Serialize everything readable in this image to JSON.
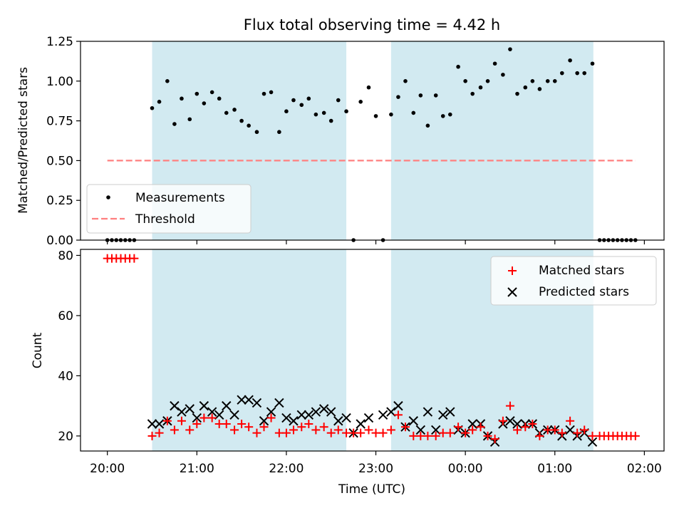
{
  "chart_data": [
    {
      "type": "scatter",
      "title": "Flux total observing time = 4.42 h",
      "xlabel": "",
      "ylabel": "Matched/Predicted stars",
      "ylim": [
        0,
        1.25
      ],
      "yticks": [
        0.0,
        0.25,
        0.5,
        0.75,
        1.0,
        1.25
      ],
      "ytick_labels": [
        "0.00",
        "0.25",
        "0.50",
        "0.75",
        "1.00",
        "1.25"
      ],
      "xlim": [
        -0.3,
        6.22
      ],
      "grid": false,
      "legend_placement": "lower-left",
      "shaded_intervals": [
        [
          0.5,
          2.67
        ],
        [
          3.17,
          5.43
        ]
      ],
      "shade_color": "#add8e6",
      "series": [
        {
          "name": "Measurements",
          "marker": "dot",
          "color": "#000000",
          "x": [
            0.0,
            0.05,
            0.1,
            0.15,
            0.2,
            0.25,
            0.3,
            0.5,
            0.58,
            0.67,
            0.75,
            0.83,
            0.92,
            1.0,
            1.08,
            1.17,
            1.25,
            1.33,
            1.42,
            1.5,
            1.58,
            1.67,
            1.75,
            1.83,
            1.92,
            2.0,
            2.08,
            2.17,
            2.25,
            2.33,
            2.42,
            2.5,
            2.58,
            2.67,
            2.75,
            2.83,
            2.92,
            3.0,
            3.08,
            3.17,
            3.25,
            3.33,
            3.42,
            3.5,
            3.58,
            3.67,
            3.75,
            3.83,
            3.92,
            4.0,
            4.08,
            4.17,
            4.25,
            4.33,
            4.42,
            4.5,
            4.58,
            4.67,
            4.75,
            4.83,
            4.92,
            5.0,
            5.08,
            5.17,
            5.25,
            5.33,
            5.42,
            5.5,
            5.55,
            5.6,
            5.65,
            5.7,
            5.75,
            5.8,
            5.85,
            5.9
          ],
          "y": [
            0,
            0,
            0,
            0,
            0,
            0,
            0,
            0.83,
            0.87,
            1.0,
            0.73,
            0.89,
            0.76,
            0.92,
            0.86,
            0.93,
            0.89,
            0.8,
            0.82,
            0.75,
            0.72,
            0.68,
            0.92,
            0.93,
            0.68,
            0.81,
            0.88,
            0.85,
            0.89,
            0.79,
            0.8,
            0.75,
            0.88,
            0.81,
            0.0,
            0.87,
            0.96,
            0.78,
            0.0,
            0.79,
            0.9,
            1.0,
            0.8,
            0.91,
            0.72,
            0.91,
            0.78,
            0.79,
            1.09,
            1.0,
            0.92,
            0.96,
            1.0,
            1.11,
            1.04,
            1.2,
            0.92,
            0.96,
            1.0,
            0.95,
            1.0,
            1.0,
            1.05,
            1.13,
            1.05,
            1.05,
            1.11,
            0,
            0,
            0,
            0,
            0,
            0,
            0,
            0,
            0
          ]
        },
        {
          "name": "Threshold",
          "marker": "dashed-line",
          "color": "#ff7f7f",
          "x": [
            0.0,
            5.9
          ],
          "y": [
            0.5,
            0.5
          ]
        }
      ]
    },
    {
      "type": "scatter",
      "title": "",
      "xlabel": "Time (UTC)",
      "ylabel": "Count",
      "ylim": [
        15,
        82
      ],
      "yticks": [
        20,
        40,
        60,
        80
      ],
      "ytick_labels": [
        "20",
        "40",
        "60",
        "80"
      ],
      "xlim": [
        -0.3,
        6.22
      ],
      "xticks": [
        0,
        1,
        2,
        3,
        4,
        5,
        6
      ],
      "xtick_labels": [
        "20:00",
        "21:00",
        "22:00",
        "23:00",
        "00:00",
        "01:00",
        "02:00"
      ],
      "grid": false,
      "legend_placement": "upper-right",
      "shaded_intervals": [
        [
          0.5,
          2.67
        ],
        [
          3.17,
          5.43
        ]
      ],
      "shade_color": "#add8e6",
      "series": [
        {
          "name": "Matched stars",
          "marker": "plus",
          "color": "#ff0000",
          "x": [
            0.0,
            0.05,
            0.1,
            0.15,
            0.2,
            0.25,
            0.3,
            0.5,
            0.58,
            0.67,
            0.75,
            0.83,
            0.92,
            1.0,
            1.08,
            1.17,
            1.25,
            1.33,
            1.42,
            1.5,
            1.58,
            1.67,
            1.75,
            1.83,
            1.92,
            2.0,
            2.08,
            2.17,
            2.25,
            2.33,
            2.42,
            2.5,
            2.58,
            2.67,
            2.75,
            2.83,
            2.92,
            3.0,
            3.08,
            3.17,
            3.25,
            3.33,
            3.42,
            3.5,
            3.58,
            3.67,
            3.75,
            3.83,
            3.92,
            4.0,
            4.08,
            4.17,
            4.25,
            4.33,
            4.42,
            4.5,
            4.58,
            4.67,
            4.75,
            4.83,
            4.92,
            5.0,
            5.08,
            5.17,
            5.25,
            5.33,
            5.42,
            5.5,
            5.55,
            5.6,
            5.65,
            5.7,
            5.75,
            5.8,
            5.85,
            5.9
          ],
          "y": [
            79,
            79,
            79,
            79,
            79,
            79,
            79,
            20,
            21,
            25,
            22,
            25,
            22,
            24,
            26,
            26,
            24,
            24,
            22,
            24,
            23,
            21,
            23,
            26,
            21,
            21,
            22,
            23,
            24,
            22,
            23,
            21,
            22,
            21,
            21,
            21,
            22,
            21,
            21,
            22,
            27,
            23,
            20,
            20,
            20,
            20,
            21,
            21,
            23,
            21,
            22,
            23,
            20,
            19,
            25,
            30,
            22,
            23,
            24,
            20,
            22,
            22,
            21,
            25,
            21,
            22,
            20,
            20,
            20,
            20,
            20,
            20,
            20,
            20,
            20,
            20
          ]
        },
        {
          "name": "Predicted stars",
          "marker": "x",
          "color": "#000000",
          "x": [
            0.5,
            0.58,
            0.67,
            0.75,
            0.83,
            0.92,
            1.0,
            1.08,
            1.17,
            1.25,
            1.33,
            1.42,
            1.5,
            1.58,
            1.67,
            1.75,
            1.83,
            1.92,
            2.0,
            2.08,
            2.17,
            2.25,
            2.33,
            2.42,
            2.5,
            2.58,
            2.67,
            2.75,
            2.83,
            2.92,
            3.08,
            3.17,
            3.25,
            3.33,
            3.42,
            3.5,
            3.58,
            3.67,
            3.75,
            3.83,
            3.92,
            4.0,
            4.08,
            4.17,
            4.25,
            4.33,
            4.42,
            4.5,
            4.58,
            4.67,
            4.75,
            4.83,
            4.92,
            5.0,
            5.08,
            5.17,
            5.25,
            5.33,
            5.42
          ],
          "y": [
            24,
            24,
            25,
            30,
            28,
            29,
            26,
            30,
            28,
            27,
            30,
            27,
            32,
            32,
            31,
            25,
            28,
            31,
            26,
            25,
            27,
            27,
            28,
            29,
            28,
            25,
            26,
            21,
            24,
            26,
            27,
            28,
            30,
            23,
            25,
            22,
            28,
            22,
            27,
            28,
            22,
            21,
            24,
            24,
            20,
            18,
            24,
            25,
            24,
            24,
            24,
            21,
            22,
            22,
            20,
            22,
            20,
            21,
            18
          ]
        }
      ]
    }
  ]
}
